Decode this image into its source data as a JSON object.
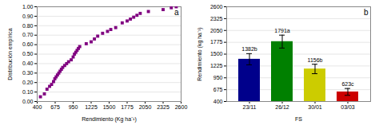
{
  "chart_data": [
    {
      "type": "scatter",
      "xlabel": "Rendimiento (Kg ha⁻¹)",
      "ylabel": "Distribución empírica",
      "annotations": [
        "a"
      ],
      "x": [
        450,
        510,
        550,
        590,
        620,
        650,
        670,
        690,
        710,
        730,
        750,
        770,
        790,
        820,
        850,
        880,
        920,
        950,
        970,
        990,
        1010,
        1030,
        1050,
        1150,
        1225,
        1275,
        1325,
        1400,
        1475,
        1525,
        1600,
        1700,
        1775,
        1825,
        1875,
        1925,
        1975,
        2100,
        2325,
        2450,
        2525
      ],
      "values": [
        0.05,
        0.08,
        0.13,
        0.16,
        0.18,
        0.21,
        0.24,
        0.26,
        0.28,
        0.3,
        0.32,
        0.34,
        0.36,
        0.38,
        0.4,
        0.42,
        0.44,
        0.47,
        0.5,
        0.52,
        0.54,
        0.56,
        0.58,
        0.61,
        0.63,
        0.66,
        0.69,
        0.72,
        0.74,
        0.76,
        0.78,
        0.83,
        0.85,
        0.87,
        0.89,
        0.91,
        0.93,
        0.95,
        0.97,
        0.99,
        1.0
      ],
      "color": "#800080",
      "marker": "square",
      "xlim": [
        400,
        2600
      ],
      "ylim": [
        0.0,
        1.0
      ],
      "xticks": [
        400,
        675,
        950,
        1225,
        1500,
        1775,
        2050,
        2325,
        2600
      ],
      "yticks": [
        {
          "value": 0.0,
          "label": "0.00"
        },
        {
          "value": 0.1,
          "label": "0.10"
        },
        {
          "value": 0.2,
          "label": "0.20"
        },
        {
          "value": 0.3,
          "label": "0.30"
        },
        {
          "value": 0.4,
          "label": "0.40"
        },
        {
          "value": 0.5,
          "label": "0.50"
        },
        {
          "value": 0.6,
          "label": "0.60"
        },
        {
          "value": 0.7,
          "label": "0.70"
        },
        {
          "value": 0.8,
          "label": "0.80"
        },
        {
          "value": 0.9,
          "label": "0.90"
        },
        {
          "value": 1.0,
          "label": "1.00"
        }
      ],
      "grid": "y"
    },
    {
      "type": "bar",
      "xlabel": "FS",
      "ylabel": "Rendimiento (kg ha⁻¹)",
      "annotations": [
        "b"
      ],
      "categories": [
        "23/11",
        "26/12",
        "30/01",
        "03/03"
      ],
      "values": [
        1382,
        1791,
        1156,
        623
      ],
      "errors": [
        130,
        150,
        110,
        80
      ],
      "value_labels": [
        "1382b",
        "1791a",
        "1156b",
        "623c"
      ],
      "data_labels": true,
      "colors": [
        "#00008B",
        "#008000",
        "#CCCC00",
        "#CC0000"
      ],
      "ylim": [
        400,
        2600
      ],
      "yticks": [
        400,
        675,
        950,
        1225,
        1500,
        1775,
        2050,
        2325,
        2600
      ],
      "grid": "y"
    }
  ]
}
